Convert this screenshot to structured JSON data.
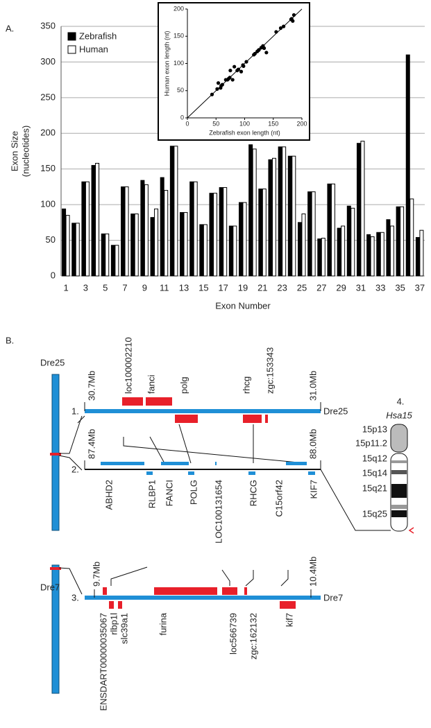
{
  "chart_data": [
    {
      "type": "bar",
      "panel_label": "A.",
      "categories": [
        1,
        null,
        3,
        null,
        5,
        null,
        7,
        null,
        9,
        null,
        11,
        null,
        13,
        null,
        15,
        null,
        17,
        null,
        19,
        null,
        21,
        null,
        23,
        null,
        25,
        null,
        27,
        null,
        29,
        null,
        31,
        null,
        33,
        null,
        35,
        null,
        37
      ],
      "series": [
        {
          "name": "Zebrafish",
          "color": "#000000",
          "values": [
            94,
            74,
            132,
            155,
            59,
            43,
            125,
            87,
            134,
            82,
            138,
            182,
            89,
            132,
            72,
            116,
            124,
            70,
            103,
            184,
            122,
            163,
            181,
            168,
            75,
            118,
            52,
            129,
            67,
            98,
            186,
            58,
            61,
            79,
            97,
            310,
            54
          ]
        },
        {
          "name": "Human",
          "color": "#ffffff",
          "values": [
            85,
            74,
            132,
            158,
            59,
            43,
            125,
            87,
            128,
            94,
            120,
            182,
            89,
            132,
            72,
            116,
            124,
            70,
            103,
            178,
            122,
            165,
            181,
            168,
            87,
            118,
            53,
            129,
            70,
            95,
            189,
            55,
            61,
            70,
            97,
            108,
            64
          ]
        }
      ],
      "ylim": [
        0,
        350
      ],
      "yticks": [
        0,
        50,
        100,
        150,
        200,
        250,
        300,
        350
      ],
      "y_label": [
        "Exon Size",
        "(nucleotides)"
      ],
      "x_label": "Exon Number",
      "grid": true,
      "legend": "upper left"
    },
    {
      "type": "scatter",
      "color": "#000000",
      "x": [
        94,
        74,
        132,
        155,
        59,
        43,
        125,
        87,
        134,
        82,
        138,
        182,
        89,
        132,
        72,
        116,
        124,
        70,
        103,
        184,
        122,
        163,
        181,
        168,
        75,
        118,
        52,
        129,
        67,
        98,
        186,
        58,
        61,
        79,
        97,
        54
      ],
      "y": [
        85,
        74,
        132,
        158,
        59,
        43,
        125,
        87,
        128,
        94,
        120,
        182,
        89,
        132,
        72,
        116,
        124,
        70,
        103,
        178,
        122,
        165,
        181,
        168,
        87,
        118,
        53,
        129,
        70,
        95,
        189,
        55,
        61,
        70,
        97,
        64
      ],
      "xlim": [
        0,
        200
      ],
      "ylim": [
        0,
        200
      ],
      "xticks": [
        0,
        50,
        100,
        150,
        200
      ],
      "yticks": [
        0,
        50,
        100,
        150,
        200
      ],
      "x_label": "Zebrafish exon length (nt)",
      "y_label": "Human exon length (nt)"
    }
  ],
  "panel_b": {
    "label": "B.",
    "track1": {
      "number": "1.",
      "chromosome": "Dre25",
      "start": "30.7Mb",
      "end": "31.0Mb",
      "name": "Dre25",
      "genes": [
        "loc100002210",
        "fanci",
        "polg",
        "rhcg",
        "zgc:153343"
      ]
    },
    "track2": {
      "number": "2.",
      "start": "87.4Mb",
      "end": "88.0Mb",
      "genes": [
        "ABHD2",
        "RLBP1",
        "FANCI",
        "POLG",
        "LOC100131654",
        "RHCG",
        "C15orf42",
        "KIF7"
      ]
    },
    "track3": {
      "number": "3.",
      "chromosome": "Dre7",
      "start": "9.7Mb",
      "end": "10.4Mb",
      "name": "Dre7",
      "genes": [
        "ENSDART00000035067",
        "rlbp1l",
        "slc39a1",
        "furina",
        "loc566739",
        "zgc:162132",
        "kif7"
      ]
    },
    "ideogram": {
      "number": "4.",
      "name": "Hsa15",
      "bands": [
        "15p13",
        "15p11.2",
        "15q12",
        "15q14",
        "15q21",
        "15q25"
      ]
    }
  }
}
